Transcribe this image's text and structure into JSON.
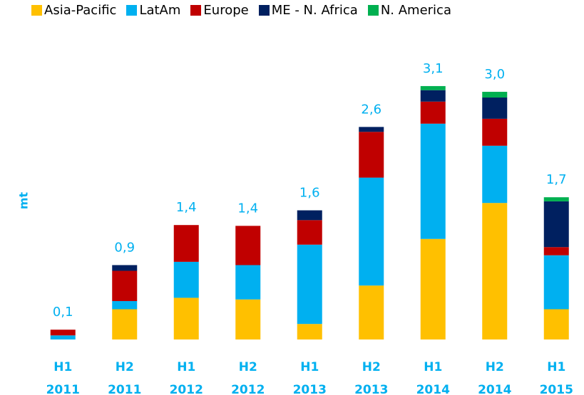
{
  "chart_data": {
    "type": "stacked_bar",
    "ylabel": "mt",
    "categories": [
      "H1 2011",
      "H2 2011",
      "H1 2012",
      "H2 2012",
      "H1 2013",
      "H2 2013",
      "H1 2014",
      "H2 2014",
      "H1 2015"
    ],
    "series": [
      {
        "name": "Asia-Pacific",
        "color": "#ffc000",
        "values": [
          0,
          0.37,
          0.51,
          0.49,
          0.19,
          0.66,
          1.23,
          1.67,
          0.37
        ]
      },
      {
        "name": "LatAm",
        "color": "#00b0f0",
        "values": [
          0.05,
          0.1,
          0.44,
          0.42,
          0.97,
          1.32,
          1.41,
          0.7,
          0.66
        ]
      },
      {
        "name": "Europe",
        "color": "#c00000",
        "values": [
          0.07,
          0.37,
          0.45,
          0.48,
          0.3,
          0.56,
          0.27,
          0.33,
          0.1
        ]
      },
      {
        "name": "ME - N. Africa",
        "color": "#002060",
        "values": [
          0,
          0.07,
          0,
          0,
          0.12,
          0.06,
          0.14,
          0.26,
          0.56
        ]
      },
      {
        "name": "N. America",
        "color": "#00b050",
        "values": [
          0,
          0,
          0,
          0,
          0,
          0,
          0.05,
          0.07,
          0.05
        ]
      }
    ],
    "totals": [
      0.1,
      0.9,
      1.4,
      1.4,
      1.6,
      2.6,
      3.1,
      3.0,
      1.7
    ],
    "total_labels": [
      "0,1",
      "0,9",
      "1,4",
      "1,4",
      "1,6",
      "2,6",
      "3,1",
      "3,0",
      "1,7"
    ],
    "ylim": [
      0,
      3.5
    ]
  }
}
